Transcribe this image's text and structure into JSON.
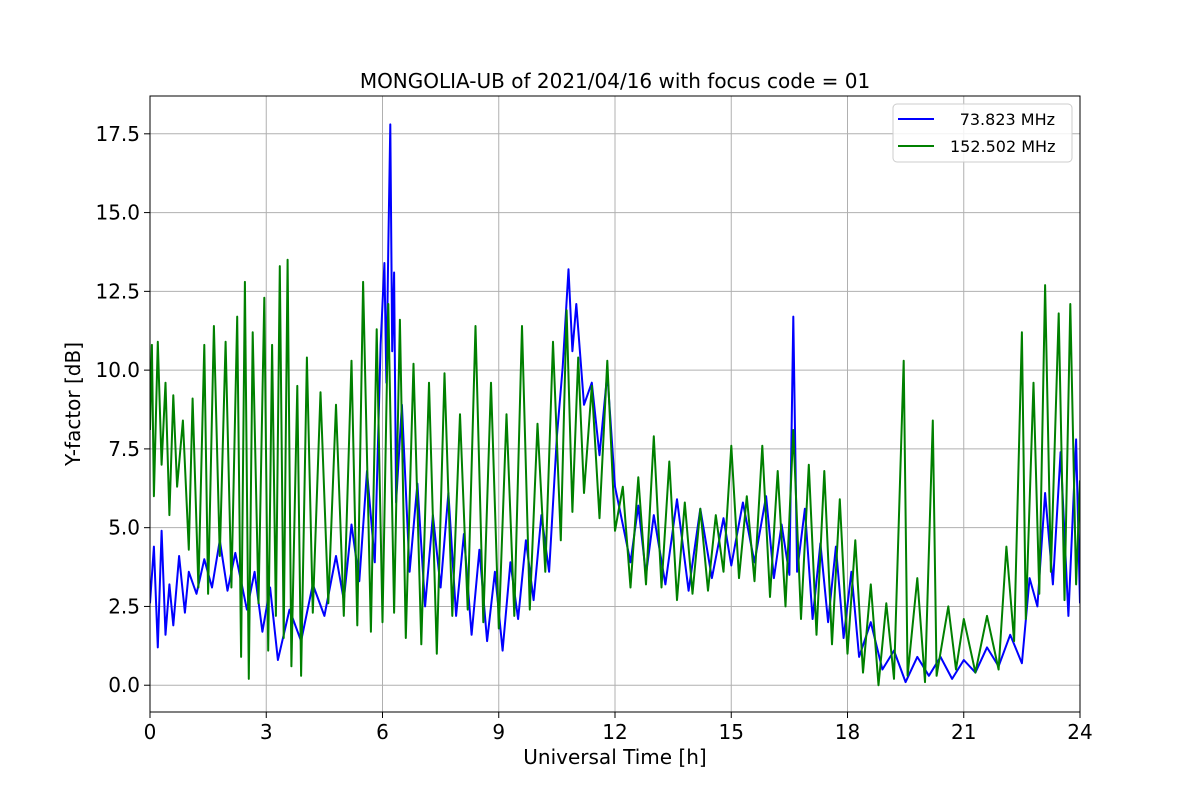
{
  "chart_data": {
    "type": "line",
    "title": "MONGOLIA-UB of 2021/04/16 with focus code = 01",
    "xlabel": "Universal Time [h]",
    "ylabel": "Y-factor [dB]",
    "xlim": [
      0,
      24
    ],
    "ylim": [
      -0.85,
      18.7
    ],
    "xticks": [
      0,
      3,
      6,
      9,
      12,
      15,
      18,
      21,
      24
    ],
    "xtick_labels": [
      "0",
      "3",
      "6",
      "9",
      "12",
      "15",
      "18",
      "21",
      "24"
    ],
    "yticks": [
      0.0,
      2.5,
      5.0,
      7.5,
      10.0,
      12.5,
      15.0,
      17.5
    ],
    "ytick_labels": [
      "0.0",
      "2.5",
      "5.0",
      "7.5",
      "10.0",
      "12.5",
      "15.0",
      "17.5"
    ],
    "grid": true,
    "legend_position": "top-right",
    "series": [
      {
        "name": "73.823 MHz",
        "color": "#0000ff",
        "points": [
          [
            0.0,
            2.6
          ],
          [
            0.1,
            4.4
          ],
          [
            0.2,
            1.2
          ],
          [
            0.3,
            4.9
          ],
          [
            0.4,
            1.6
          ],
          [
            0.5,
            3.2
          ],
          [
            0.6,
            1.9
          ],
          [
            0.75,
            4.1
          ],
          [
            0.9,
            2.3
          ],
          [
            1.0,
            3.6
          ],
          [
            1.2,
            2.9
          ],
          [
            1.4,
            4.0
          ],
          [
            1.6,
            3.1
          ],
          [
            1.8,
            4.6
          ],
          [
            2.0,
            3.0
          ],
          [
            2.2,
            4.2
          ],
          [
            2.5,
            2.4
          ],
          [
            2.7,
            3.6
          ],
          [
            2.9,
            1.7
          ],
          [
            3.1,
            3.1
          ],
          [
            3.3,
            0.8
          ],
          [
            3.6,
            2.4
          ],
          [
            3.9,
            1.4
          ],
          [
            4.2,
            3.2
          ],
          [
            4.5,
            2.2
          ],
          [
            4.8,
            4.1
          ],
          [
            5.0,
            2.7
          ],
          [
            5.2,
            5.1
          ],
          [
            5.4,
            3.3
          ],
          [
            5.6,
            6.8
          ],
          [
            5.8,
            3.9
          ],
          [
            5.95,
            10.8
          ],
          [
            6.05,
            13.4
          ],
          [
            6.1,
            9.6
          ],
          [
            6.15,
            13.9
          ],
          [
            6.2,
            17.8
          ],
          [
            6.25,
            10.6
          ],
          [
            6.3,
            13.1
          ],
          [
            6.35,
            5.8
          ],
          [
            6.5,
            8.9
          ],
          [
            6.7,
            3.6
          ],
          [
            6.9,
            6.4
          ],
          [
            7.1,
            2.5
          ],
          [
            7.3,
            5.4
          ],
          [
            7.5,
            3.1
          ],
          [
            7.7,
            6.1
          ],
          [
            7.9,
            2.2
          ],
          [
            8.1,
            4.8
          ],
          [
            8.3,
            1.6
          ],
          [
            8.5,
            4.3
          ],
          [
            8.7,
            1.4
          ],
          [
            8.9,
            3.6
          ],
          [
            9.1,
            1.1
          ],
          [
            9.3,
            3.9
          ],
          [
            9.5,
            2.1
          ],
          [
            9.7,
            4.6
          ],
          [
            9.9,
            2.7
          ],
          [
            10.1,
            5.4
          ],
          [
            10.3,
            3.6
          ],
          [
            10.5,
            7.9
          ],
          [
            10.65,
            10.1
          ],
          [
            10.8,
            13.2
          ],
          [
            10.9,
            10.6
          ],
          [
            11.0,
            12.1
          ],
          [
            11.2,
            8.9
          ],
          [
            11.4,
            9.6
          ],
          [
            11.6,
            7.3
          ],
          [
            11.8,
            9.9
          ],
          [
            12.0,
            6.3
          ],
          [
            12.2,
            5.1
          ],
          [
            12.4,
            3.9
          ],
          [
            12.6,
            5.7
          ],
          [
            12.8,
            3.5
          ],
          [
            13.0,
            5.4
          ],
          [
            13.3,
            3.2
          ],
          [
            13.6,
            5.9
          ],
          [
            13.9,
            3.0
          ],
          [
            14.2,
            5.6
          ],
          [
            14.5,
            3.4
          ],
          [
            14.8,
            5.3
          ],
          [
            15.0,
            3.8
          ],
          [
            15.3,
            5.8
          ],
          [
            15.6,
            3.9
          ],
          [
            15.9,
            6.0
          ],
          [
            16.1,
            3.4
          ],
          [
            16.3,
            5.1
          ],
          [
            16.5,
            3.5
          ],
          [
            16.6,
            11.7
          ],
          [
            16.7,
            3.6
          ],
          [
            16.9,
            5.6
          ],
          [
            17.1,
            2.1
          ],
          [
            17.3,
            4.5
          ],
          [
            17.5,
            2.0
          ],
          [
            17.7,
            4.4
          ],
          [
            17.9,
            1.5
          ],
          [
            18.1,
            3.6
          ],
          [
            18.3,
            0.9
          ],
          [
            18.6,
            2.0
          ],
          [
            18.9,
            0.5
          ],
          [
            19.2,
            1.1
          ],
          [
            19.5,
            0.1
          ],
          [
            19.8,
            0.9
          ],
          [
            20.1,
            0.3
          ],
          [
            20.4,
            0.9
          ],
          [
            20.7,
            0.2
          ],
          [
            21.0,
            0.8
          ],
          [
            21.3,
            0.4
          ],
          [
            21.6,
            1.2
          ],
          [
            21.9,
            0.6
          ],
          [
            22.2,
            1.6
          ],
          [
            22.5,
            0.7
          ],
          [
            22.7,
            3.4
          ],
          [
            22.9,
            2.5
          ],
          [
            23.1,
            6.1
          ],
          [
            23.3,
            3.2
          ],
          [
            23.5,
            7.4
          ],
          [
            23.7,
            2.2
          ],
          [
            23.9,
            7.8
          ],
          [
            24.0,
            2.6
          ]
        ]
      },
      {
        "name": "152.502 MHz",
        "color": "#008000",
        "points": [
          [
            0.0,
            8.1
          ],
          [
            0.05,
            10.8
          ],
          [
            0.1,
            6.0
          ],
          [
            0.2,
            10.9
          ],
          [
            0.3,
            7.0
          ],
          [
            0.4,
            9.6
          ],
          [
            0.5,
            5.4
          ],
          [
            0.6,
            9.2
          ],
          [
            0.7,
            6.3
          ],
          [
            0.85,
            8.4
          ],
          [
            1.0,
            4.3
          ],
          [
            1.1,
            9.1
          ],
          [
            1.25,
            3.1
          ],
          [
            1.4,
            10.8
          ],
          [
            1.5,
            2.9
          ],
          [
            1.65,
            11.4
          ],
          [
            1.8,
            4.1
          ],
          [
            1.95,
            10.9
          ],
          [
            2.1,
            3.1
          ],
          [
            2.25,
            11.7
          ],
          [
            2.35,
            0.9
          ],
          [
            2.45,
            12.8
          ],
          [
            2.55,
            0.2
          ],
          [
            2.65,
            11.2
          ],
          [
            2.8,
            2.6
          ],
          [
            2.95,
            12.3
          ],
          [
            3.05,
            1.1
          ],
          [
            3.15,
            10.8
          ],
          [
            3.25,
            2.2
          ],
          [
            3.35,
            13.3
          ],
          [
            3.45,
            1.5
          ],
          [
            3.55,
            13.5
          ],
          [
            3.65,
            0.6
          ],
          [
            3.8,
            9.5
          ],
          [
            3.9,
            0.3
          ],
          [
            4.05,
            10.4
          ],
          [
            4.2,
            2.3
          ],
          [
            4.4,
            9.3
          ],
          [
            4.6,
            2.6
          ],
          [
            4.8,
            8.9
          ],
          [
            5.0,
            2.2
          ],
          [
            5.2,
            10.3
          ],
          [
            5.35,
            1.9
          ],
          [
            5.5,
            12.8
          ],
          [
            5.7,
            1.7
          ],
          [
            5.85,
            11.3
          ],
          [
            6.0,
            2.0
          ],
          [
            6.15,
            12.1
          ],
          [
            6.3,
            2.3
          ],
          [
            6.45,
            11.6
          ],
          [
            6.6,
            1.5
          ],
          [
            6.8,
            10.2
          ],
          [
            7.0,
            1.3
          ],
          [
            7.2,
            9.6
          ],
          [
            7.4,
            1.0
          ],
          [
            7.6,
            9.9
          ],
          [
            7.8,
            2.2
          ],
          [
            8.0,
            8.6
          ],
          [
            8.2,
            2.4
          ],
          [
            8.4,
            11.4
          ],
          [
            8.6,
            2.0
          ],
          [
            8.8,
            9.6
          ],
          [
            9.0,
            1.8
          ],
          [
            9.2,
            8.6
          ],
          [
            9.4,
            2.2
          ],
          [
            9.6,
            11.4
          ],
          [
            9.8,
            2.4
          ],
          [
            10.0,
            8.3
          ],
          [
            10.2,
            3.6
          ],
          [
            10.4,
            10.9
          ],
          [
            10.6,
            4.6
          ],
          [
            10.75,
            11.9
          ],
          [
            10.9,
            5.5
          ],
          [
            11.05,
            10.4
          ],
          [
            11.2,
            6.1
          ],
          [
            11.4,
            9.5
          ],
          [
            11.6,
            5.3
          ],
          [
            11.8,
            10.3
          ],
          [
            12.0,
            4.9
          ],
          [
            12.2,
            6.3
          ],
          [
            12.4,
            3.1
          ],
          [
            12.6,
            6.6
          ],
          [
            12.8,
            3.2
          ],
          [
            13.0,
            7.9
          ],
          [
            13.2,
            3.1
          ],
          [
            13.4,
            7.1
          ],
          [
            13.6,
            2.7
          ],
          [
            13.8,
            5.8
          ],
          [
            14.0,
            2.9
          ],
          [
            14.2,
            5.6
          ],
          [
            14.4,
            3.0
          ],
          [
            14.6,
            5.4
          ],
          [
            14.8,
            3.6
          ],
          [
            15.0,
            7.6
          ],
          [
            15.2,
            3.4
          ],
          [
            15.4,
            6.0
          ],
          [
            15.6,
            3.3
          ],
          [
            15.8,
            7.6
          ],
          [
            16.0,
            2.8
          ],
          [
            16.2,
            6.8
          ],
          [
            16.4,
            2.5
          ],
          [
            16.6,
            8.1
          ],
          [
            16.8,
            2.1
          ],
          [
            17.0,
            7.0
          ],
          [
            17.2,
            1.6
          ],
          [
            17.4,
            6.8
          ],
          [
            17.6,
            1.3
          ],
          [
            17.8,
            5.9
          ],
          [
            18.0,
            1.0
          ],
          [
            18.2,
            4.6
          ],
          [
            18.4,
            0.4
          ],
          [
            18.6,
            3.2
          ],
          [
            18.8,
            0.0
          ],
          [
            19.0,
            2.6
          ],
          [
            19.2,
            0.2
          ],
          [
            19.45,
            10.3
          ],
          [
            19.55,
            0.3
          ],
          [
            19.8,
            3.4
          ],
          [
            20.0,
            0.1
          ],
          [
            20.2,
            8.4
          ],
          [
            20.3,
            0.3
          ],
          [
            20.6,
            2.5
          ],
          [
            20.8,
            0.5
          ],
          [
            21.0,
            2.1
          ],
          [
            21.3,
            0.4
          ],
          [
            21.6,
            2.2
          ],
          [
            21.9,
            0.5
          ],
          [
            22.1,
            4.4
          ],
          [
            22.3,
            1.4
          ],
          [
            22.5,
            11.2
          ],
          [
            22.6,
            2.1
          ],
          [
            22.8,
            9.6
          ],
          [
            22.95,
            2.9
          ],
          [
            23.1,
            12.7
          ],
          [
            23.25,
            3.6
          ],
          [
            23.45,
            11.8
          ],
          [
            23.6,
            2.7
          ],
          [
            23.75,
            12.1
          ],
          [
            23.9,
            3.2
          ],
          [
            24.0,
            6.5
          ]
        ]
      }
    ]
  }
}
